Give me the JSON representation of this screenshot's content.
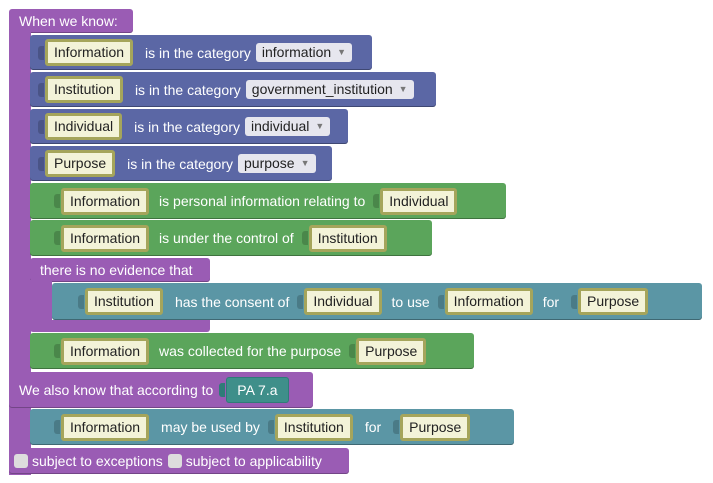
{
  "when_label": "When we know:",
  "categories": [
    {
      "var": "Information",
      "label": "is in the category",
      "value": "information"
    },
    {
      "var": "Institution",
      "label": "is in the category",
      "value": "government_institution"
    },
    {
      "var": "Individual",
      "label": "is in the category",
      "value": "individual"
    },
    {
      "var": "Purpose",
      "label": "is in the category",
      "value": "purpose"
    }
  ],
  "personal": {
    "var1": "Information",
    "label": "is personal information relating to",
    "var2": "Individual"
  },
  "control": {
    "var1": "Information",
    "label": "is under the control of",
    "var2": "Institution"
  },
  "no_evidence": {
    "label": "there is no evidence that",
    "var1": "Institution",
    "label1": "has the consent of",
    "var2": "Individual",
    "label2": "to use",
    "var3": "Information",
    "label3": "for",
    "var4": "Purpose"
  },
  "collected": {
    "var1": "Information",
    "label": "was collected for the purpose",
    "var2": "Purpose"
  },
  "also_know": {
    "label": "We also know that according to",
    "ref": "PA 7.a"
  },
  "may_use": {
    "var1": "Information",
    "label1": "may be used by",
    "var2": "Institution",
    "label2": "for",
    "var3": "Purpose"
  },
  "footer": {
    "exceptions": "subject to exceptions",
    "applicability": "subject to applicability"
  },
  "colors": {
    "purple": "#9a5cb4",
    "blue": "#5b67a5",
    "green": "#5ba55b",
    "teal": "#5b96a5",
    "variable_fill": "#f3f3d8"
  }
}
